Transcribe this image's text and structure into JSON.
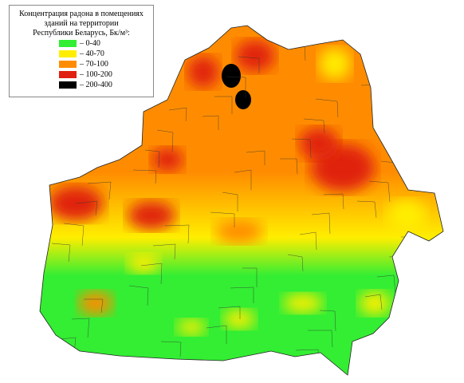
{
  "legend": {
    "title": [
      "Концентрация радона в помещениях",
      "зданий на территории",
      "Республики Беларусь, Бк/м³:"
    ],
    "items": [
      {
        "label": "– 0-40",
        "color": "#33ee33"
      },
      {
        "label": "– 40-70",
        "color": "#ffee00"
      },
      {
        "label": "– 70-100",
        "color": "#ff8c00"
      },
      {
        "label": "– 100-200",
        "color": "#e02010"
      },
      {
        "label": "– 200-400",
        "color": "#000000"
      }
    ]
  }
}
